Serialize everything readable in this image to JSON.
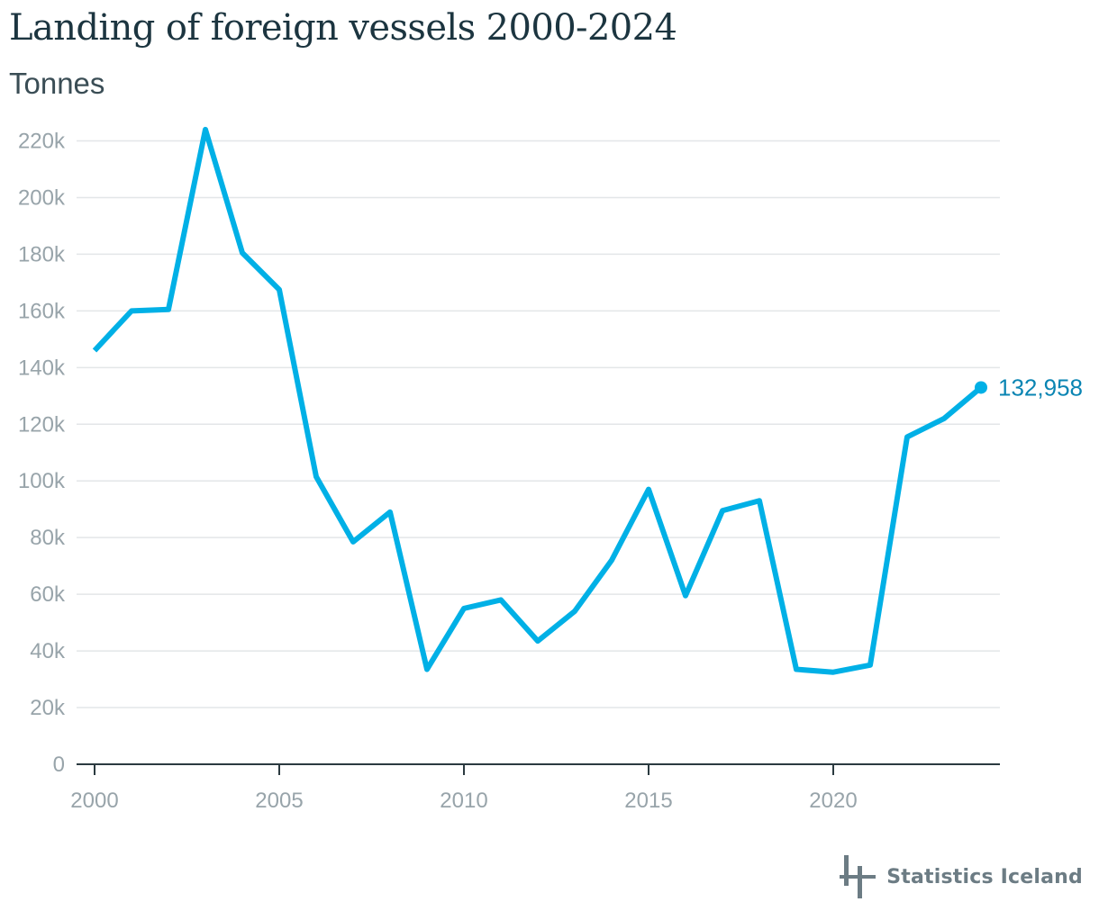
{
  "header": {
    "title": "Landing of foreign vessels 2000-2024",
    "subtitle": "Tonnes"
  },
  "brand": {
    "name": "Statistics Iceland",
    "logo_icon": "statistics-iceland-logo-icon"
  },
  "colors": {
    "line": "#00b0e6",
    "end_label": "#0a85b3",
    "grid": "#e3e6e8",
    "axis": "#2b3a40",
    "tick_text": "#98a4aa",
    "brand": "#6c7c84"
  },
  "chart_data": {
    "type": "line",
    "title": "Landing of foreign vessels 2000-2024",
    "subtitle": "Tonnes",
    "xlabel": "",
    "ylabel": "",
    "x": [
      2000,
      2001,
      2002,
      2003,
      2004,
      2005,
      2006,
      2007,
      2008,
      2009,
      2010,
      2011,
      2012,
      2013,
      2014,
      2015,
      2016,
      2017,
      2018,
      2019,
      2020,
      2021,
      2022,
      2023,
      2024
    ],
    "series": [
      {
        "values": [
          146000,
          160000,
          160500,
          224000,
          180500,
          167500,
          101500,
          78500,
          89000,
          33500,
          55000,
          58000,
          43500,
          54000,
          72000,
          97000,
          59500,
          89500,
          93000,
          33500,
          32500,
          35000,
          115500,
          122000,
          132958
        ]
      }
    ],
    "xlim": [
      2000,
      2024
    ],
    "ylim": [
      0,
      220000
    ],
    "x_ticks": [
      2000,
      2005,
      2010,
      2015,
      2020
    ],
    "x_tick_labels": [
      "2000",
      "2005",
      "2010",
      "2015",
      "2020"
    ],
    "y_ticks": [
      0,
      20000,
      40000,
      60000,
      80000,
      100000,
      120000,
      140000,
      160000,
      180000,
      200000,
      220000
    ],
    "y_tick_labels": [
      "0",
      "20k",
      "40k",
      "60k",
      "80k",
      "100k",
      "120k",
      "140k",
      "160k",
      "180k",
      "200k",
      "220k"
    ],
    "end_label": "132,958",
    "grid": true,
    "legend": "none"
  }
}
